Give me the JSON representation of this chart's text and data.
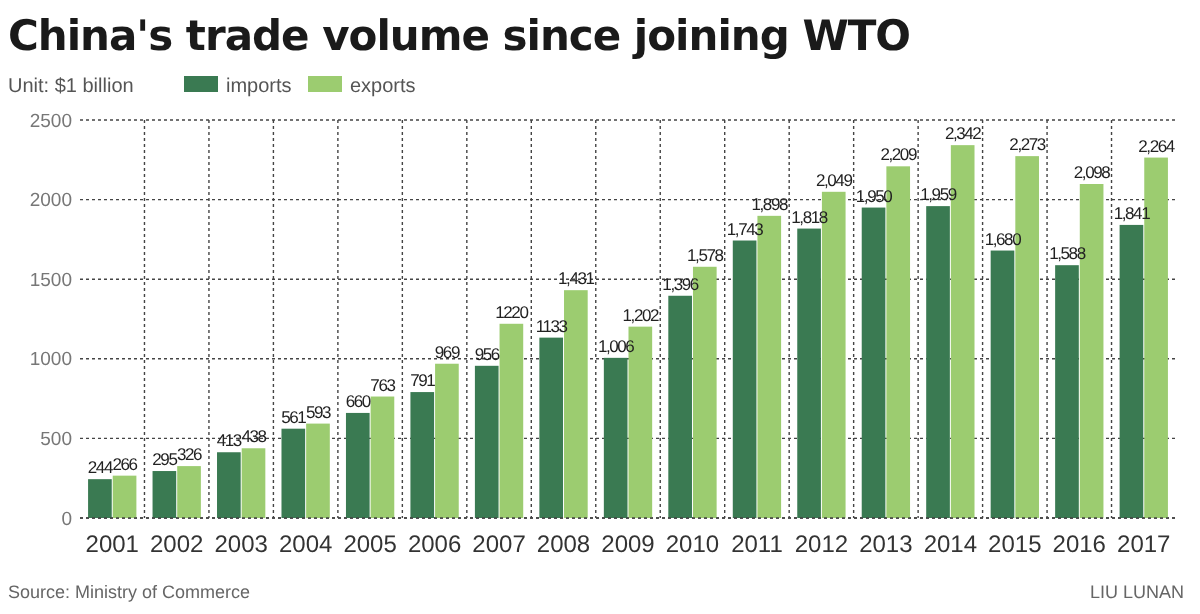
{
  "chart_data": {
    "type": "bar",
    "title": "China's trade volume since joining WTO",
    "categories": [
      "2001",
      "2002",
      "2003",
      "2004",
      "2005",
      "2006",
      "2007",
      "2008",
      "2009",
      "2010",
      "2011",
      "2012",
      "2013",
      "2014",
      "2015",
      "2016",
      "2017"
    ],
    "series": [
      {
        "name": "imports",
        "color": "#3a7a52",
        "values": [
          244,
          295,
          413,
          561,
          660,
          791,
          956,
          1133,
          1006,
          1396,
          1743,
          1818,
          1950,
          1959,
          1680,
          1588,
          1841
        ],
        "value_labels": [
          "244",
          "295",
          "413",
          "561",
          "660",
          "791",
          "956",
          "1133",
          "1,006",
          "1,396",
          "1,743",
          "1,818",
          "1,950",
          "1,959",
          "1,680",
          "1,588",
          "1,841"
        ]
      },
      {
        "name": "exports",
        "color": "#9ccc70",
        "values": [
          266,
          326,
          438,
          593,
          763,
          969,
          1220,
          1431,
          1202,
          1578,
          1898,
          2049,
          2209,
          2342,
          2273,
          2098,
          2264
        ],
        "value_labels": [
          "266",
          "326",
          "438",
          "593",
          "763",
          "969",
          "1220",
          "1,431",
          "1,202",
          "1,578",
          "1,898",
          "2,049",
          "2,209",
          "2,342",
          "2,273",
          "2,098",
          "2,264"
        ]
      }
    ],
    "ylim": [
      0,
      2500
    ],
    "yticks": [
      0,
      500,
      1000,
      1500,
      2000,
      2500
    ],
    "grid": true,
    "legend": "top left",
    "annotations": [
      "Unit: $1 billion",
      "Source: Ministry of Commerce",
      "LIU LUNAN"
    ]
  }
}
